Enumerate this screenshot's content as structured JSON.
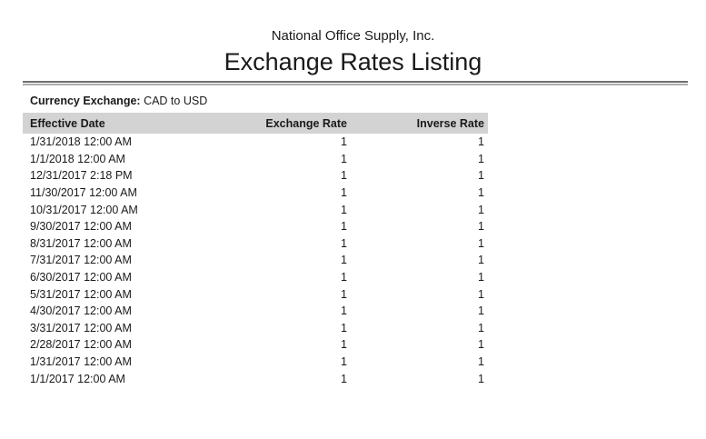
{
  "report": {
    "company": "National Office Supply, Inc.",
    "title": "Exchange Rates Listing",
    "filter": {
      "label": "Currency Exchange:",
      "value": "CAD to USD"
    },
    "table": {
      "columns": [
        "Effective Date",
        "Exchange Rate",
        "Inverse Rate"
      ],
      "rows": [
        {
          "effective_date": "1/31/2018 12:00 AM",
          "exchange_rate": "1",
          "inverse_rate": "1"
        },
        {
          "effective_date": "1/1/2018 12:00 AM",
          "exchange_rate": "1",
          "inverse_rate": "1"
        },
        {
          "effective_date": "12/31/2017 2:18 PM",
          "exchange_rate": "1",
          "inverse_rate": "1"
        },
        {
          "effective_date": "11/30/2017 12:00 AM",
          "exchange_rate": "1",
          "inverse_rate": "1"
        },
        {
          "effective_date": "10/31/2017 12:00 AM",
          "exchange_rate": "1",
          "inverse_rate": "1"
        },
        {
          "effective_date": "9/30/2017 12:00 AM",
          "exchange_rate": "1",
          "inverse_rate": "1"
        },
        {
          "effective_date": "8/31/2017 12:00 AM",
          "exchange_rate": "1",
          "inverse_rate": "1"
        },
        {
          "effective_date": "7/31/2017 12:00 AM",
          "exchange_rate": "1",
          "inverse_rate": "1"
        },
        {
          "effective_date": "6/30/2017 12:00 AM",
          "exchange_rate": "1",
          "inverse_rate": "1"
        },
        {
          "effective_date": "5/31/2017 12:00 AM",
          "exchange_rate": "1",
          "inverse_rate": "1"
        },
        {
          "effective_date": "4/30/2017 12:00 AM",
          "exchange_rate": "1",
          "inverse_rate": "1"
        },
        {
          "effective_date": "3/31/2017 12:00 AM",
          "exchange_rate": "1",
          "inverse_rate": "1"
        },
        {
          "effective_date": "2/28/2017 12:00 AM",
          "exchange_rate": "1",
          "inverse_rate": "1"
        },
        {
          "effective_date": "1/31/2017 12:00 AM",
          "exchange_rate": "1",
          "inverse_rate": "1"
        },
        {
          "effective_date": "1/1/2017 12:00 AM",
          "exchange_rate": "1",
          "inverse_rate": "1"
        }
      ]
    },
    "colors": {
      "header_band": "#d3d3d3",
      "rule_dark": "#6f6f6f",
      "rule_light": "#adadad",
      "text": "#1a1a1a"
    }
  }
}
